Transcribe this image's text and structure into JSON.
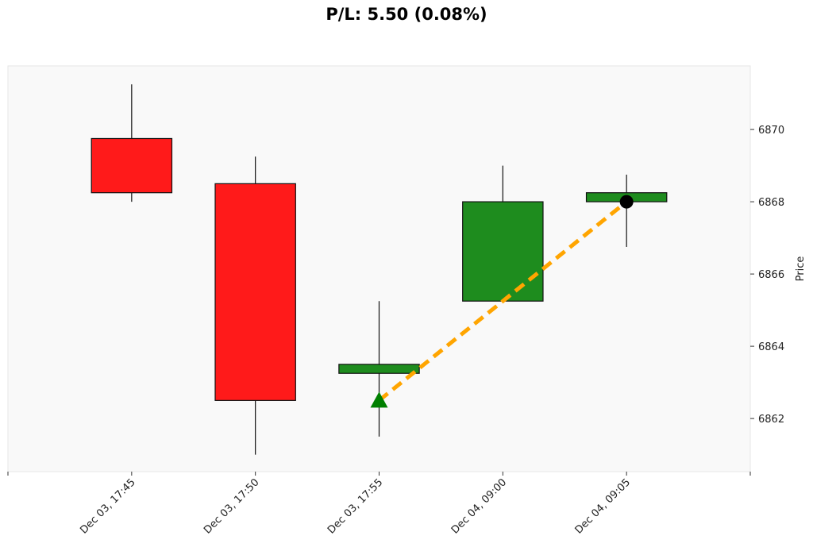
{
  "chart_data": {
    "type": "candlestick",
    "title": "P/L: 5.50 (0.08%)",
    "xlabel": "",
    "ylabel": "Price",
    "categories": [
      "Dec 03, 17:45",
      "Dec 03, 17:50",
      "Dec 03, 17:55",
      "Dec 04, 09:00",
      "Dec 04, 09:05"
    ],
    "candles": [
      {
        "open": 6869.75,
        "high": 6871.25,
        "low": 6868.0,
        "close": 6868.25
      },
      {
        "open": 6868.5,
        "high": 6869.25,
        "low": 6861.0,
        "close": 6862.5
      },
      {
        "open": 6863.25,
        "high": 6865.25,
        "low": 6861.5,
        "close": 6863.5
      },
      {
        "open": 6865.25,
        "high": 6869.0,
        "low": 6865.25,
        "close": 6868.0
      },
      {
        "open": 6868.0,
        "high": 6868.75,
        "low": 6866.75,
        "close": 6868.25
      }
    ],
    "entry": {
      "index": 2,
      "price": 6862.5,
      "marker": "triangle-up",
      "color": "#008000"
    },
    "exit": {
      "index": 4,
      "price": 6868.0,
      "marker": "circle",
      "color": "#000000"
    },
    "trade_line_color": "#FFA500",
    "up_color": "#1E8C1E",
    "down_color": "#FF1A1A",
    "yticks": [
      6862,
      6864,
      6866,
      6868,
      6870
    ],
    "ylim": [
      6860.53,
      6871.76
    ],
    "xlim": [
      -1,
      5
    ],
    "grid": false,
    "y_axis_side": "right"
  }
}
